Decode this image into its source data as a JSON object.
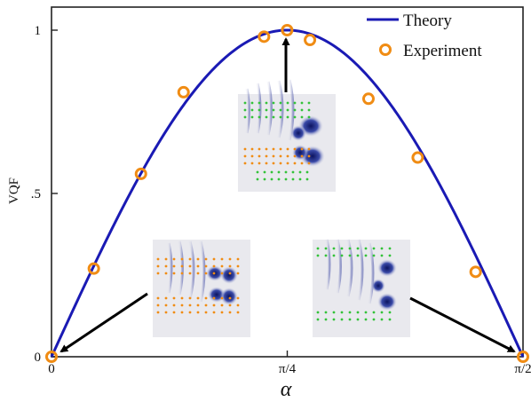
{
  "chart_data": {
    "type": "line",
    "xlabel": "α",
    "ylabel": "VQF",
    "xlim": [
      0,
      1.5708
    ],
    "ylim": [
      0,
      1.0
    ],
    "x_ticks": [
      {
        "value": 0,
        "label": "0"
      },
      {
        "value": 0.7854,
        "label": "π/4"
      },
      {
        "value": 1.5708,
        "label": "π/2"
      }
    ],
    "y_ticks": [
      {
        "value": 0,
        "label": "0"
      },
      {
        "value": 0.5,
        "label": ".5"
      },
      {
        "value": 1,
        "label": "1"
      }
    ],
    "grid": false,
    "legend_position": "top-right",
    "series": [
      {
        "name": "Theory",
        "kind": "line",
        "color": "#1a1ab4",
        "function": "sin(2*alpha)"
      },
      {
        "name": "Experiment",
        "kind": "scatter",
        "color": "#f08c14",
        "marker": "open-circle",
        "points": [
          {
            "x": 0.0,
            "y": 0.0
          },
          {
            "x": 0.141,
            "y": 0.27
          },
          {
            "x": 0.298,
            "y": 0.56
          },
          {
            "x": 0.44,
            "y": 0.81
          },
          {
            "x": 0.708,
            "y": 0.98
          },
          {
            "x": 0.785,
            "y": 1.0
          },
          {
            "x": 0.861,
            "y": 0.97
          },
          {
            "x": 1.056,
            "y": 0.79
          },
          {
            "x": 1.22,
            "y": 0.61
          },
          {
            "x": 1.413,
            "y": 0.26
          },
          {
            "x": 1.5708,
            "y": 0.0
          }
        ]
      }
    ],
    "insets": [
      {
        "name": "inset-top",
        "points_to": {
          "x": 0.785,
          "y": 1.0
        }
      },
      {
        "name": "inset-left",
        "points_to": {
          "x": 0.0,
          "y": 0.0
        }
      },
      {
        "name": "inset-right",
        "points_to": {
          "x": 1.5708,
          "y": 0.0
        }
      }
    ]
  }
}
